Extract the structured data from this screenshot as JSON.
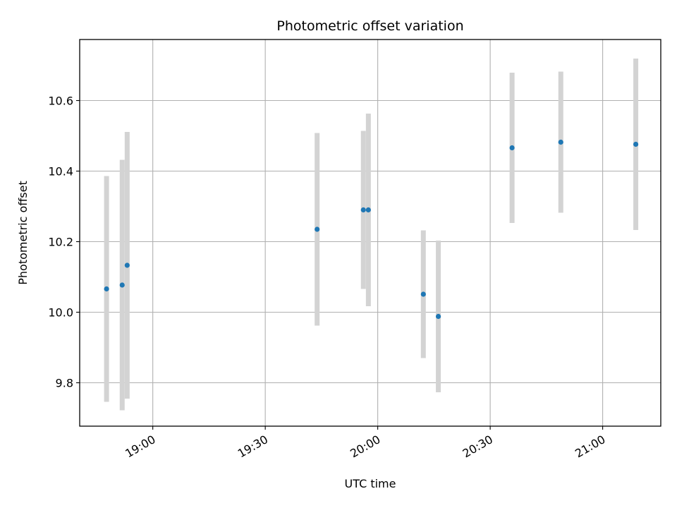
{
  "chart_data": {
    "type": "scatter",
    "title": "Photometric offset variation",
    "xlabel": "UTC time",
    "ylabel": "Photometric offset",
    "x_axis": "time",
    "xlim": [
      "18:40:30",
      "21:15:30"
    ],
    "ylim": [
      9.677,
      10.773
    ],
    "xticks": [
      "19:00",
      "19:30",
      "20:00",
      "20:30",
      "21:00"
    ],
    "yticks": [
      9.8,
      10.0,
      10.2,
      10.4,
      10.6
    ],
    "grid": true,
    "point_color": "#1f77b4",
    "errorbar_color": "#d3d3d3",
    "points": [
      {
        "x": "18:47:40",
        "y": 10.066,
        "err": 0.32
      },
      {
        "x": "18:51:50",
        "y": 10.077,
        "err": 0.355
      },
      {
        "x": "18:53:10",
        "y": 10.133,
        "err": 0.378
      },
      {
        "x": "19:43:50",
        "y": 10.235,
        "err": 0.273
      },
      {
        "x": "19:56:10",
        "y": 10.29,
        "err": 0.224
      },
      {
        "x": "19:57:30",
        "y": 10.29,
        "err": 0.273
      },
      {
        "x": "20:12:10",
        "y": 10.051,
        "err": 0.181
      },
      {
        "x": "20:16:10",
        "y": 9.988,
        "err": 0.215
      },
      {
        "x": "20:35:50",
        "y": 10.466,
        "err": 0.213
      },
      {
        "x": "20:48:50",
        "y": 10.482,
        "err": 0.2
      },
      {
        "x": "21:08:50",
        "y": 10.476,
        "err": 0.243
      }
    ]
  }
}
